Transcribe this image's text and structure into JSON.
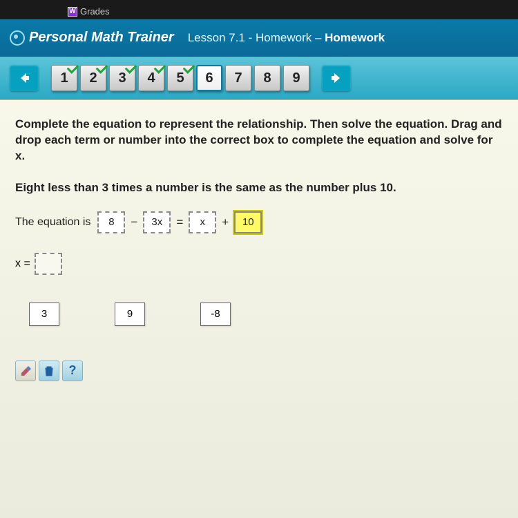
{
  "tab": {
    "label": "Grades",
    "icon_letter": "W"
  },
  "header": {
    "app_title": "Personal Math Trainer",
    "lesson_prefix": "Lesson 7.1 - Homework – ",
    "lesson_bold": "Homework"
  },
  "nav": {
    "questions": [
      {
        "n": "1",
        "done": true,
        "current": false
      },
      {
        "n": "2",
        "done": true,
        "current": false
      },
      {
        "n": "3",
        "done": true,
        "current": false
      },
      {
        "n": "4",
        "done": true,
        "current": false
      },
      {
        "n": "5",
        "done": true,
        "current": false
      },
      {
        "n": "6",
        "done": false,
        "current": true
      },
      {
        "n": "7",
        "done": false,
        "current": false
      },
      {
        "n": "8",
        "done": false,
        "current": false
      },
      {
        "n": "9",
        "done": false,
        "current": false
      }
    ]
  },
  "problem": {
    "instructions": "Complete the equation to represent the relationship. Then solve the equation. Drag and drop each term or number into the correct box to complete the equation and solve for x.",
    "statement": "Eight less than 3 times a number is the same as the number plus 10.",
    "equation_label": "The equation is",
    "slots": {
      "a": "8",
      "b": "3x",
      "c": "x",
      "d": "10"
    },
    "ops": {
      "minus": "−",
      "equals": "=",
      "plus": "+"
    },
    "answer_label": "x =",
    "answer_value": "",
    "pool": [
      "3",
      "9",
      "-8"
    ]
  },
  "tools": {
    "eraser_label": "✐",
    "trash_label": "🗑",
    "help_label": "?"
  },
  "colors": {
    "header_bg": "#0a7aa8",
    "nav_bg": "#2aa8c4",
    "content_bg": "#f5f5e8",
    "check_green": "#1aa838",
    "highlight": "#fffa66"
  }
}
